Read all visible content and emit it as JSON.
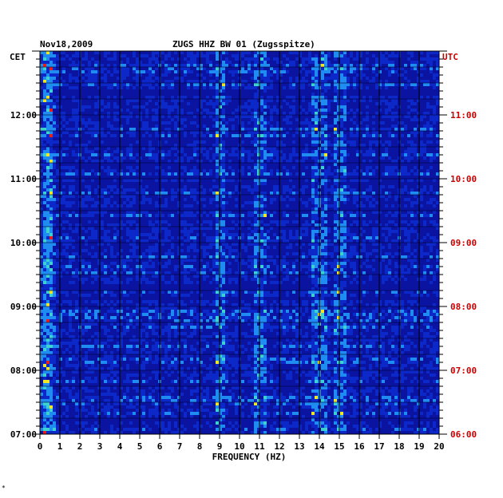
{
  "chart_data": {
    "type": "heatmap",
    "header": {
      "date": "Nov18,2009",
      "station": "ZUGS HHZ BW 01 (Zugsspitze)"
    },
    "left_axis_label": "CET",
    "right_axis_label": "UTC",
    "xlabel": "FREQUENCY (HZ)",
    "xlim": [
      0,
      20
    ],
    "x_ticks": [
      "0",
      "1",
      "2",
      "3",
      "4",
      "5",
      "6",
      "7",
      "8",
      "9",
      "10",
      "11",
      "12",
      "13",
      "14",
      "15",
      "16",
      "17",
      "18",
      "19",
      "20"
    ],
    "y_ticks_cet": [
      "12:00",
      "11:00",
      "10:00",
      "09:00",
      "08:00",
      "07:00"
    ],
    "y_ticks_utc": [
      "11:00",
      "10:00",
      "09:00",
      "08:00",
      "07:00",
      "06:00"
    ],
    "colors": {
      "background": "#0a14a0",
      "low": "#0c28c8",
      "mid": "#1e8cf0",
      "high": "#3cd2d2",
      "hot": "#f0e628",
      "peak": "#e61e1e",
      "utc_text": "#cc0000",
      "grid": "#000000"
    }
  },
  "footer_mark": "*"
}
